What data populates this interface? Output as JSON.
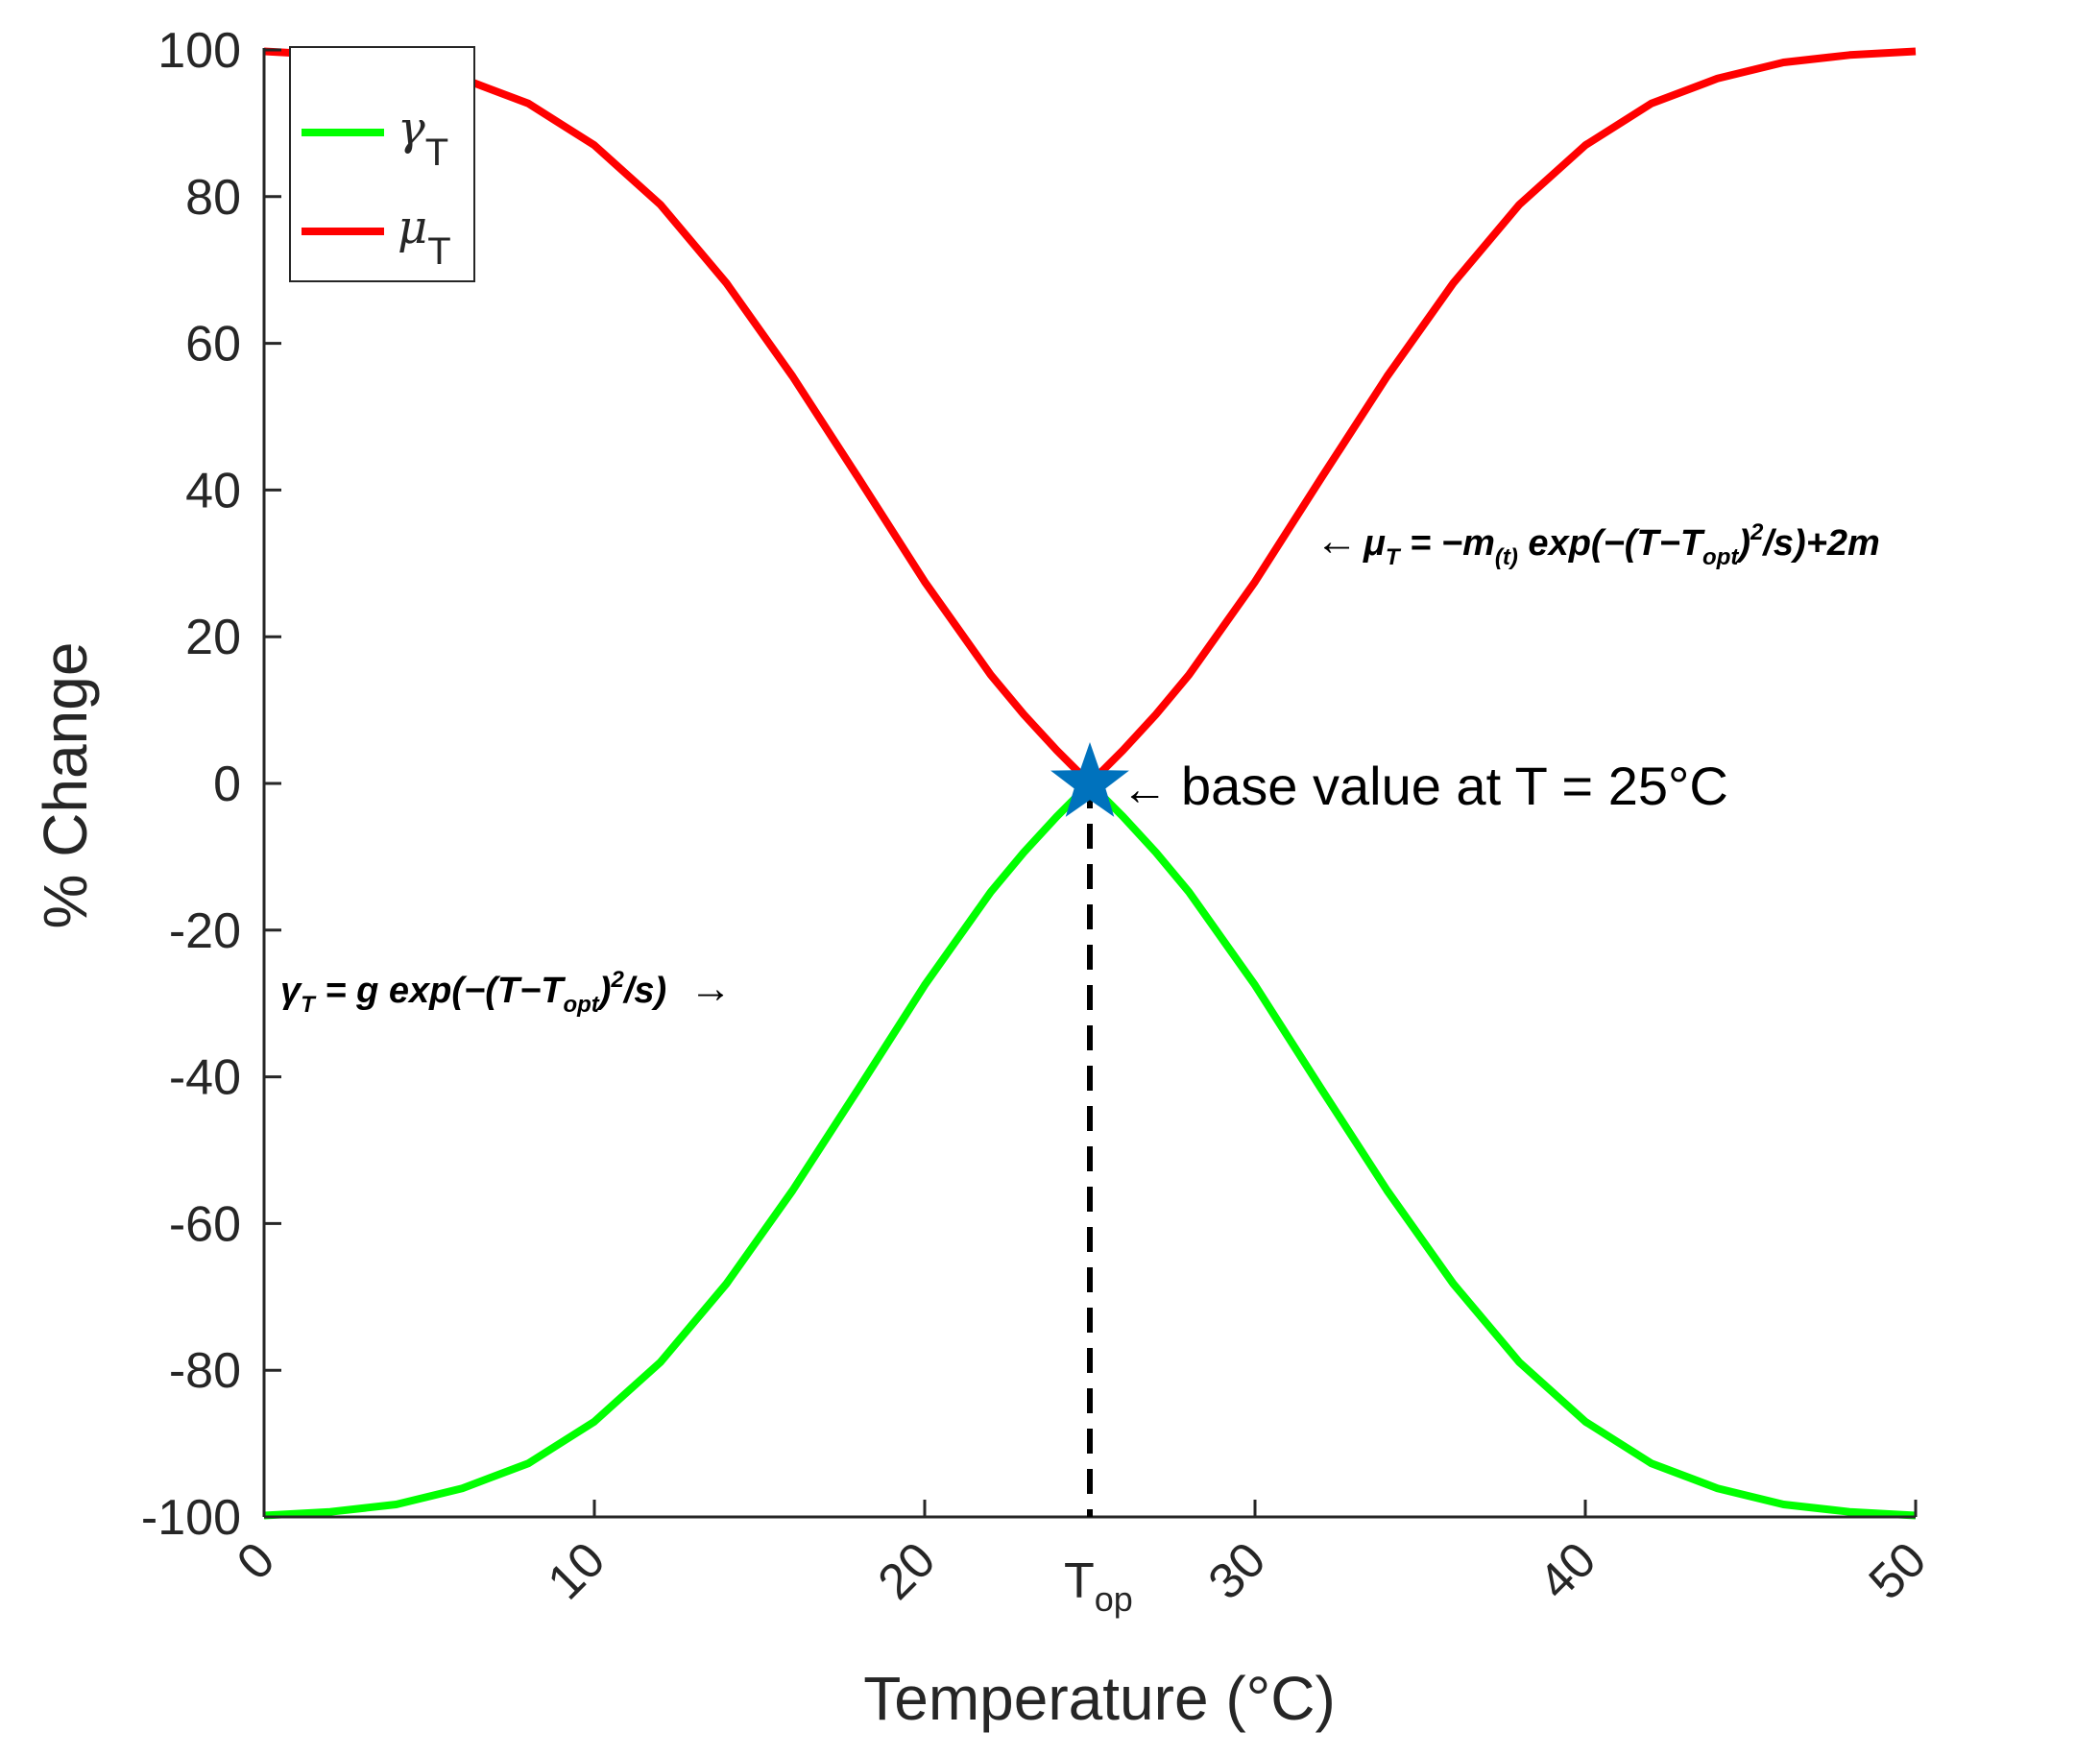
{
  "chart_data": {
    "type": "line",
    "xlabel": "Temperature (°C)",
    "ylabel": "% Change",
    "xlim": [
      0,
      50
    ],
    "ylim": [
      -100,
      100
    ],
    "xticks": [
      "0",
      "10",
      "20",
      "30",
      "40",
      "50"
    ],
    "yticks": [
      "100",
      "80",
      "60",
      "40",
      "20",
      "0",
      "-20",
      "-40",
      "-60",
      "-80",
      "-100"
    ],
    "x": [
      0,
      2,
      4,
      6,
      8,
      10,
      12,
      14,
      16,
      18,
      20,
      22,
      23,
      24,
      25,
      26,
      27,
      28,
      30,
      32,
      34,
      36,
      38,
      40,
      42,
      44,
      46,
      48,
      50
    ],
    "series": [
      {
        "name": "γ",
        "name_sub": "T",
        "color": "#00ff00",
        "values": [
          -99.8,
          -99.3,
          -98.3,
          -96.1,
          -92.7,
          -87.0,
          -78.9,
          -68.2,
          -55.5,
          -41.6,
          -27.5,
          -14.8,
          -9.4,
          -4.5,
          0,
          -4.5,
          -9.4,
          -14.8,
          -27.5,
          -41.6,
          -55.5,
          -68.2,
          -78.9,
          -87.0,
          -92.7,
          -96.1,
          -98.3,
          -99.3,
          -99.8
        ]
      },
      {
        "name": "μ",
        "name_sub": "T",
        "color": "#ff0000",
        "values": [
          99.8,
          99.3,
          98.3,
          96.1,
          92.7,
          87.0,
          78.9,
          68.2,
          55.5,
          41.6,
          27.5,
          14.8,
          9.4,
          4.5,
          0,
          4.5,
          9.4,
          14.8,
          27.5,
          41.6,
          55.5,
          68.2,
          78.9,
          87.0,
          92.7,
          96.1,
          98.3,
          99.3,
          99.8
        ]
      }
    ],
    "legend_position": "top-left",
    "grid": false,
    "marker": {
      "x": 25,
      "y": 0,
      "shape": "star",
      "color": "#0072bd"
    },
    "reference_line": {
      "x": 25,
      "style": "dashed",
      "color": "#000000",
      "label": "T",
      "label_sub": "op"
    },
    "annotations": {
      "mu_arrow": "←",
      "mu_eq_1": "μ",
      "mu_eq_1_sub": "T",
      "mu_eq_2": " = −m",
      "mu_eq_2_sub": "(t)",
      "mu_eq_3": " exp(−(T−T",
      "mu_eq_3_sub": "opt",
      "mu_eq_4": ")",
      "mu_eq_4_sup": "2",
      "mu_eq_5": "/s)+2m",
      "gamma_eq_1": "γ",
      "gamma_eq_1_sub": "T",
      "gamma_eq_2": " = g exp(−(T−T",
      "gamma_eq_2_sub": "opt",
      "gamma_eq_3": ")",
      "gamma_eq_3_sup": "2",
      "gamma_eq_4": "/s)",
      "gamma_arrow": "→",
      "base_arrow": "←",
      "base_text": "base value at T = 25°C"
    }
  }
}
